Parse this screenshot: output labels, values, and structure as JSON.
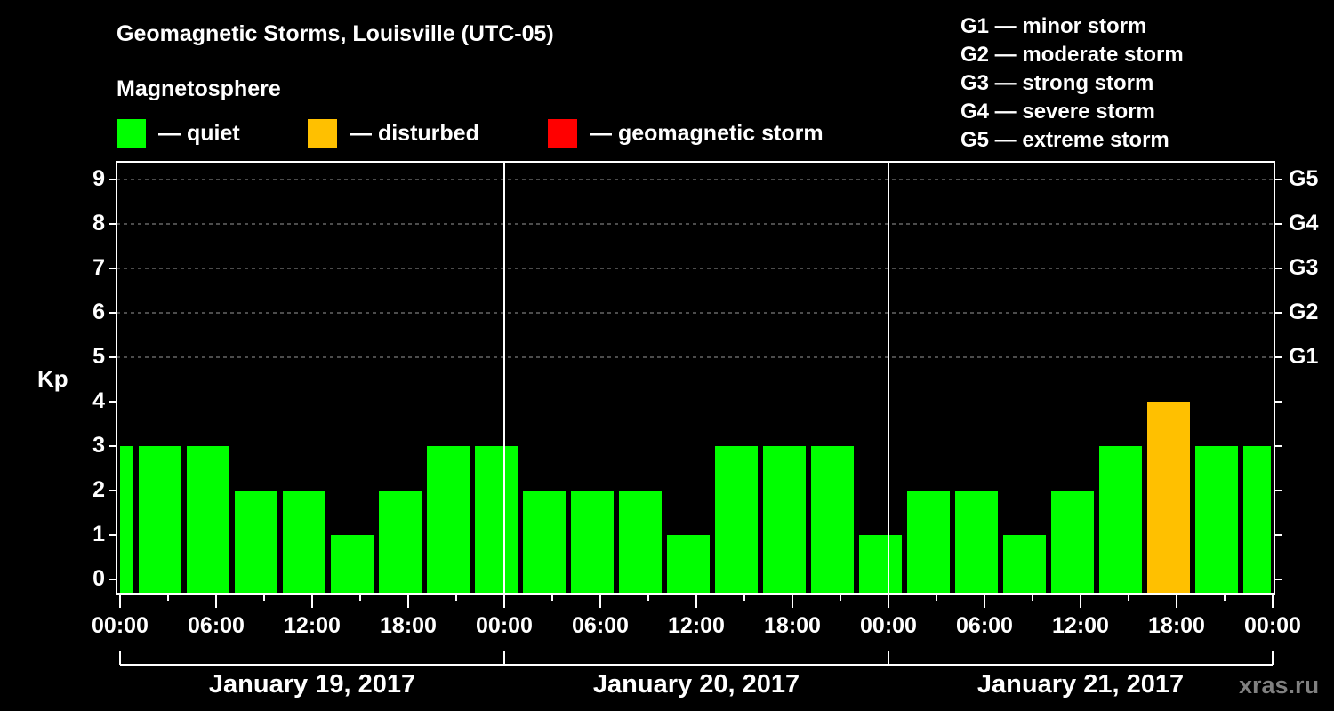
{
  "header": {
    "title": "Geomagnetic Storms, Louisville (UTC-05)",
    "subtitle": "Magnetosphere"
  },
  "legend": [
    {
      "label": "— quiet",
      "color": "#00ff00"
    },
    {
      "label": "— disturbed",
      "color": "#ffc000"
    },
    {
      "label": "— geomagnetic storm",
      "color": "#ff0000"
    }
  ],
  "g_legend": [
    "G1 — minor storm",
    "G2 — moderate storm",
    "G3 — strong storm",
    "G4 — severe storm",
    "G5 — extreme storm"
  ],
  "axes": {
    "ylabel": "Kp",
    "yticks": [
      "0",
      "1",
      "2",
      "3",
      "4",
      "5",
      "6",
      "7",
      "8",
      "9"
    ],
    "gticks": [
      "G1",
      "G2",
      "G3",
      "G4",
      "G5"
    ],
    "xticks": [
      "00:00",
      "06:00",
      "12:00",
      "18:00",
      "00:00",
      "06:00",
      "12:00",
      "18:00",
      "00:00",
      "06:00",
      "12:00",
      "18:00",
      "00:00"
    ],
    "dates": [
      "January 19, 2017",
      "January 20, 2017",
      "January 21, 2017"
    ]
  },
  "watermark": "xras.ru",
  "chart_data": {
    "type": "bar",
    "title": "Geomagnetic Storms, Louisville (UTC-05)",
    "xlabel": "",
    "ylabel": "Kp",
    "ylim": [
      0,
      9
    ],
    "grid": "horizontal dashed at 5-9",
    "legend": {
      "quiet": "#00ff00",
      "disturbed": "#ffc000",
      "geomagnetic storm": "#ff0000"
    },
    "categories": [
      "Jan 19 00:00",
      "Jan 19 01:00",
      "Jan 19 04:00",
      "Jan 19 07:00",
      "Jan 19 10:00",
      "Jan 19 13:00",
      "Jan 19 16:00",
      "Jan 19 19:00",
      "Jan 19 22:00",
      "Jan 20 01:00",
      "Jan 20 04:00",
      "Jan 20 07:00",
      "Jan 20 10:00",
      "Jan 20 13:00",
      "Jan 20 16:00",
      "Jan 20 19:00",
      "Jan 20 22:00",
      "Jan 21 01:00",
      "Jan 21 04:00",
      "Jan 21 07:00",
      "Jan 21 10:00",
      "Jan 21 13:00",
      "Jan 21 16:00",
      "Jan 21 19:00",
      "Jan 21 22:00"
    ],
    "values": [
      3,
      3,
      3,
      2,
      2,
      1,
      2,
      3,
      3,
      2,
      2,
      2,
      1,
      3,
      3,
      3,
      1,
      2,
      2,
      1,
      2,
      3,
      4,
      3,
      3
    ],
    "status": [
      "quiet",
      "quiet",
      "quiet",
      "quiet",
      "quiet",
      "quiet",
      "quiet",
      "quiet",
      "quiet",
      "quiet",
      "quiet",
      "quiet",
      "quiet",
      "quiet",
      "quiet",
      "quiet",
      "quiet",
      "quiet",
      "quiet",
      "quiet",
      "quiet",
      "quiet",
      "disturbed",
      "quiet",
      "quiet"
    ],
    "g_scale": {
      "G1": 5,
      "G2": 6,
      "G3": 7,
      "G4": 8,
      "G5": 9
    }
  }
}
